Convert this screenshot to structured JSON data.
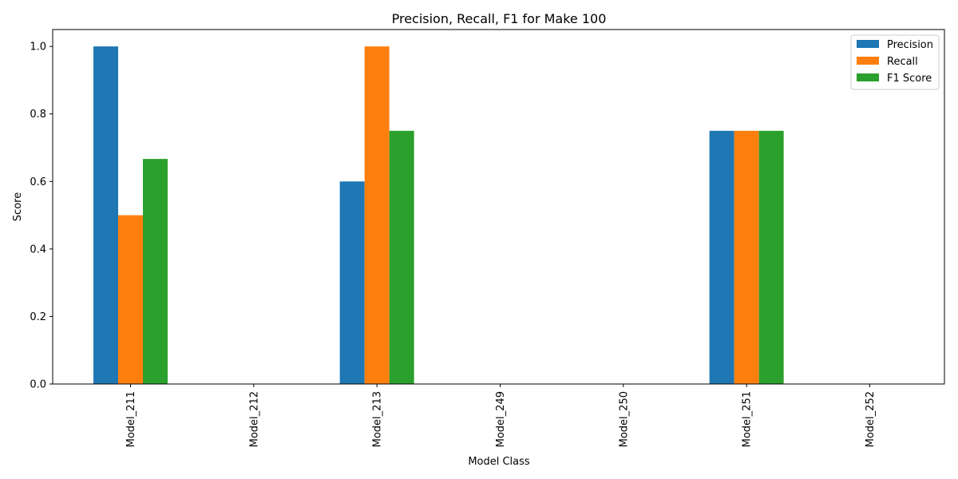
{
  "chart_data": {
    "type": "bar",
    "title": "Precision, Recall, F1 for Make 100",
    "xlabel": "Model Class",
    "ylabel": "Score",
    "categories": [
      "Model_211",
      "Model_212",
      "Model_213",
      "Model_249",
      "Model_250",
      "Model_251",
      "Model_252"
    ],
    "series": [
      {
        "name": "Precision",
        "color": "#1f77b4",
        "values": [
          1.0,
          0,
          0.6,
          0,
          0,
          0.75,
          0
        ]
      },
      {
        "name": "Recall",
        "color": "#ff7f0e",
        "values": [
          0.5,
          0,
          1.0,
          0,
          0,
          0.75,
          0
        ]
      },
      {
        "name": "F1 Score",
        "color": "#2ca02c",
        "values": [
          0.6667,
          0,
          0.75,
          0,
          0,
          0.75,
          0
        ]
      }
    ],
    "ylim": [
      0,
      1.05
    ],
    "yticks": [
      "0.0",
      "0.2",
      "0.4",
      "0.6",
      "0.8",
      "1.0"
    ],
    "grid": false,
    "legend": "top-right"
  }
}
